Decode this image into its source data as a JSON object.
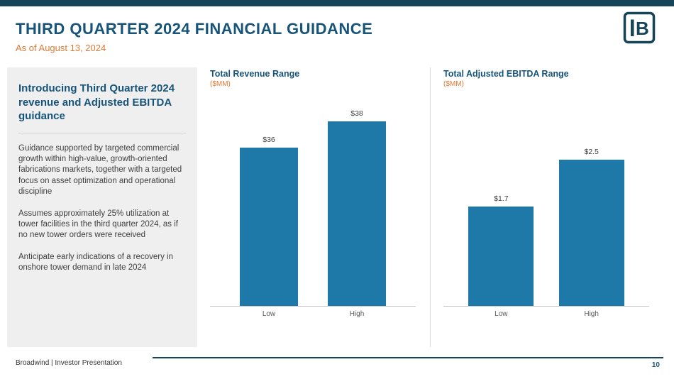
{
  "slide": {
    "title": "THIRD QUARTER 2024 FINANCIAL GUIDANCE",
    "subtitle": "As of August 13, 2024",
    "footer_left": "Broadwind  | Investor Presentation",
    "page_number": "10"
  },
  "sidebar": {
    "heading": "Introducing Third Quarter 2024 revenue and Adjusted EBITDA guidance",
    "paragraphs": [
      "Guidance supported by targeted commercial growth within high-value, growth-oriented fabrications markets, together with a targeted focus on asset optimization and operational discipline",
      "Assumes approximately 25% utilization at tower facilities in the third quarter 2024, as if no new tower orders were received",
      "Anticipate early indications of a recovery in onshore tower demand in late 2024"
    ]
  },
  "chart_data": [
    {
      "type": "bar",
      "title": "Total Revenue Range",
      "subtitle": "($MM)",
      "categories": [
        "Low",
        "High"
      ],
      "values": [
        36,
        38
      ],
      "value_labels": [
        "$36",
        "$38"
      ],
      "ylim": [
        24,
        40
      ],
      "bar_color": "#1F79A8",
      "grid": false,
      "legend": false
    },
    {
      "type": "bar",
      "title": "Total Adjusted EBITDA Range",
      "subtitle": "($MM)",
      "categories": [
        "Low",
        "High"
      ],
      "values": [
        1.7,
        2.5
      ],
      "value_labels": [
        "$1.7",
        "$2.5"
      ],
      "ylim": [
        0,
        3.6
      ],
      "bar_color": "#1F79A8",
      "grid": false,
      "legend": false
    }
  ],
  "colors": {
    "brand_dark": "#16455A",
    "heading_blue": "#17547A",
    "accent_orange": "#DD7A33",
    "bar_teal": "#1F79A8",
    "sidebar_bg": "#EFEFEF"
  }
}
